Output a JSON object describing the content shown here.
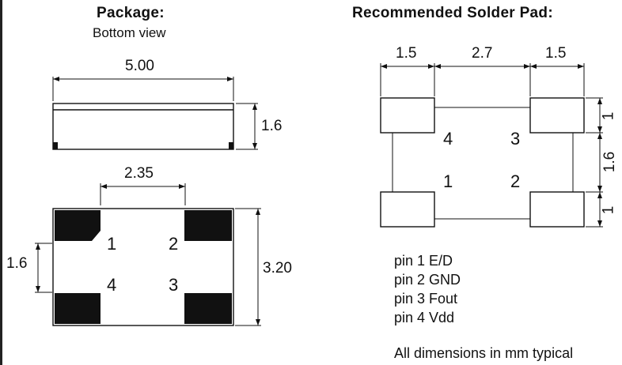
{
  "package": {
    "title": "Package:",
    "subtitle": "Bottom view",
    "dim_length": "5.00",
    "dim_height": "1.6",
    "dim_pad_spacing": "2.35",
    "dim_pad_pitch": "1.6",
    "dim_width": "3.20",
    "pins": [
      "1",
      "2",
      "4",
      "3"
    ]
  },
  "solder_pad": {
    "title": "Recommended Solder Pad:",
    "dim_pad_a": "1.5",
    "dim_gap": "2.7",
    "dim_pad_b": "1.5",
    "dim_right_top": "1",
    "dim_right_mid": "1.6",
    "dim_right_bot": "1",
    "pins": [
      "4",
      "3",
      "1",
      "2"
    ]
  },
  "pin_legend": [
    "pin 1 E/D",
    "pin 2 GND",
    "pin 3 Fout",
    "pin 4 Vdd"
  ],
  "note": "All dimensions in mm typical"
}
